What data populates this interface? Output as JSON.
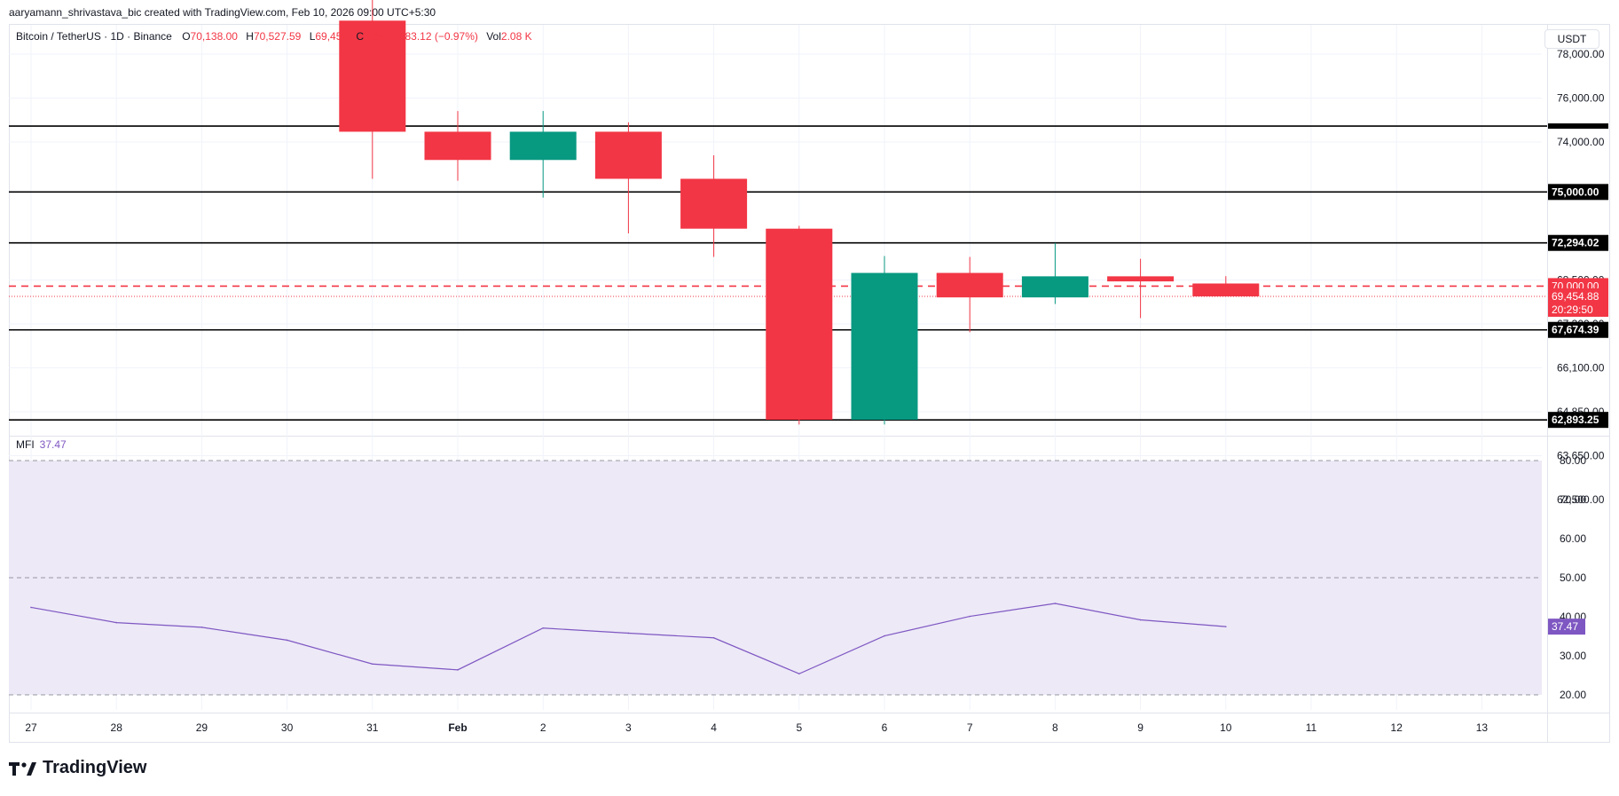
{
  "header": {
    "credit": "aaryamann_shrivastava_bic created with TradingView.com, Feb 10, 2026 09:00 UTC+5:30"
  },
  "legend": {
    "symbol": "Bitcoin / TetherUS · 1D · Binance",
    "o_label": "O",
    "o_value": "70,138.00",
    "h_label": "H",
    "h_value": "70,527.59",
    "l_label": "L",
    "l_value": "69,450",
    "c_label": "C",
    "c_value": "...88",
    "change": "−683.12 (−0.97%)",
    "vol_label": "Vol",
    "vol_value": "2.08 K"
  },
  "currency_button": "USDT",
  "mfi_legend": {
    "label": "MFI",
    "value": "37.47"
  },
  "brand": {
    "name": "TradingView"
  },
  "colors": {
    "up": "#089981",
    "down": "#f23645",
    "mfi_line": "#7e57c2",
    "mfi_band": "#ede9f7",
    "level_line": "#000000",
    "grid": "#f0f3fa"
  },
  "chart_data": [
    {
      "type": "candlestick",
      "title": "Bitcoin / TetherUS · 1D · Binance",
      "x_ticks": [
        "27",
        "28",
        "29",
        "30",
        "31",
        "Feb",
        "2",
        "3",
        "4",
        "5",
        "6",
        "7",
        "8",
        "9",
        "10",
        "11",
        "12",
        "13"
      ],
      "y_ticks": [
        "78,000.00",
        "76,000.00",
        "74,000.00",
        "68,500.00",
        "67,300.00",
        "66,100.00",
        "64,850.00",
        "63,650.00",
        "62,500.00"
      ],
      "candles": [
        {
          "x": "31",
          "open": 84100,
          "high": 85200,
          "low": 75700,
          "close": 78200
        },
        {
          "x": "Feb",
          "open": 78200,
          "high": 79300,
          "low": 75600,
          "close": 76700
        },
        {
          "x": "2",
          "open": 76700,
          "high": 79300,
          "low": 74700,
          "close": 78200
        },
        {
          "x": "3",
          "open": 78200,
          "high": 78700,
          "low": 72800,
          "close": 75700
        },
        {
          "x": "4",
          "open": 75700,
          "high": 76950,
          "low": 71550,
          "close": 73050
        },
        {
          "x": "5",
          "open": 73050,
          "high": 73200,
          "low": 62650,
          "close": 62900
        },
        {
          "x": "6",
          "open": 62900,
          "high": 71600,
          "low": 62650,
          "close": 70700
        },
        {
          "x": "7",
          "open": 70700,
          "high": 71550,
          "low": 67550,
          "close": 69400
        },
        {
          "x": "8",
          "open": 69400,
          "high": 72294,
          "low": 69050,
          "close": 70520
        },
        {
          "x": "9",
          "open": 70520,
          "high": 71450,
          "low": 68300,
          "close": 70250
        },
        {
          "x": "10",
          "open": 70138,
          "high": 70527.59,
          "low": 69450,
          "close": 69454.88
        }
      ],
      "levels": [
        {
          "value": 78500,
          "label": ""
        },
        {
          "value": 75000,
          "label": "75,000.00"
        },
        {
          "value": 72294.02,
          "label": "72,294.02"
        },
        {
          "value": 67674.39,
          "label": "67,674.39"
        },
        {
          "value": 62893.25,
          "label": "62,893.25"
        }
      ],
      "dashed_level": {
        "value": 70000,
        "label": "70,000.00"
      },
      "last_price": {
        "value": 69454.88,
        "label": "69,454.88",
        "countdown": "20:29:50"
      }
    },
    {
      "type": "line",
      "title": "MFI",
      "y_ticks": [
        "80.00",
        "70.00",
        "60.00",
        "50.00",
        "40.00",
        "30.00",
        "20.00"
      ],
      "ylim": [
        20,
        80
      ],
      "band": [
        20,
        80
      ],
      "dashed_levels": [
        80,
        50,
        20
      ],
      "x": [
        "27",
        "28",
        "29",
        "30",
        "31",
        "Feb",
        "2",
        "3",
        "4",
        "5",
        "6",
        "7",
        "8",
        "9",
        "10"
      ],
      "values": [
        42.4,
        38.5,
        37.3,
        34.0,
        27.9,
        26.4,
        37.1,
        35.8,
        34.6,
        25.4,
        35.1,
        40.1,
        43.4,
        39.2,
        37.47
      ],
      "current_label": "37.47"
    }
  ]
}
